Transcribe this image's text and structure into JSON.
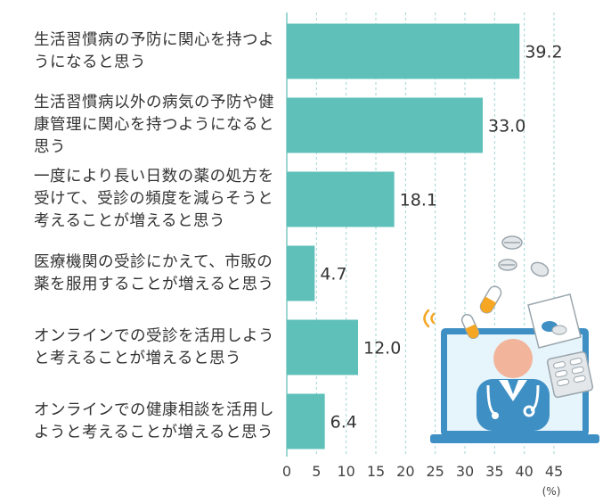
{
  "chart_data": {
    "type": "bar",
    "orientation": "horizontal",
    "categories": [
      "生活習慣病の予防に関心を持つようになると思う",
      "生活習慣病以外の病気の予防や健康管理に関心を持つようになると思う",
      "一度により長い日数の薬の処方を受けて、受診の頻度を減らそうと考えることが増えると思う",
      "医療機関の受診にかえて、市販の薬を服用することが増えると思う",
      "オンラインでの受診を活用しようと考えることが増えると思う",
      "オンラインでの健康相談を活用しようと考えることが増えると思う"
    ],
    "values": [
      39.2,
      33.0,
      18.1,
      4.7,
      12.0,
      6.4
    ],
    "value_labels": [
      "39.2",
      "33.0",
      "18.1",
      "4.7",
      "12.0",
      "6.4"
    ],
    "x_ticks": [
      "0",
      "5",
      "10",
      "15",
      "20",
      "25",
      "30",
      "35",
      "40",
      "45"
    ],
    "x_unit": "(%)",
    "xlim": [
      0,
      45
    ],
    "title": "",
    "xlabel": "",
    "ylabel": "",
    "grid": "vertical dashed",
    "bar_color": "#5fc0b9",
    "grid_color": "#9fd6d2"
  },
  "illustration": {
    "description_icons": [
      "doctor-icon",
      "laptop-icon",
      "pill-icon",
      "capsule-icon",
      "medicine-packet-icon",
      "blister-pack-icon",
      "wifi-signal-icon"
    ]
  }
}
